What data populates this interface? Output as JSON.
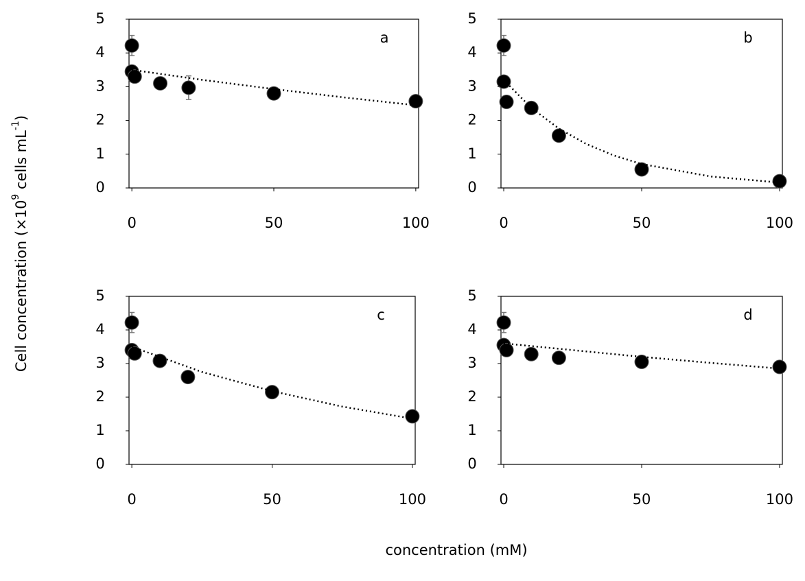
{
  "figure": {
    "x_label": "concentration (mM)",
    "y_label_parts": [
      "Cell concentration (×10",
      "9",
      " cells mL",
      "-1",
      ")"
    ]
  },
  "chart_data": [
    {
      "type": "scatter",
      "label": "a",
      "xlim": [
        -1,
        101
      ],
      "ylim": [
        0,
        5
      ],
      "xticks": [
        0,
        50,
        100
      ],
      "yticks": [
        0,
        1,
        2,
        3,
        4,
        5
      ],
      "series": [
        {
          "color": "#000000",
          "x": [
            0,
            0,
            1,
            10,
            20,
            50,
            100
          ],
          "values": [
            4.22,
            3.45,
            3.3,
            3.1,
            2.97,
            2.8,
            2.57
          ],
          "errors": [
            0.3,
            null,
            null,
            null,
            0.35,
            null,
            null
          ]
        },
        {
          "style": "dotted",
          "color": "#000000",
          "x": [
            0,
            25,
            50,
            75,
            100
          ],
          "values": [
            3.5,
            3.2,
            2.93,
            2.68,
            2.45
          ]
        }
      ]
    },
    {
      "type": "scatter",
      "label": "b",
      "xlim": [
        -1,
        101
      ],
      "ylim": [
        0,
        5
      ],
      "xticks": [
        0,
        50,
        100
      ],
      "yticks": [
        0,
        1,
        2,
        3,
        4,
        5
      ],
      "series": [
        {
          "color": "#000000",
          "x": [
            0,
            0,
            1,
            10,
            20,
            50,
            100
          ],
          "values": [
            4.22,
            3.15,
            2.55,
            2.37,
            1.55,
            0.55,
            0.2
          ],
          "errors": [
            0.3,
            null,
            null,
            null,
            null,
            null,
            null
          ]
        },
        {
          "style": "dotted",
          "color": "#000000",
          "x": [
            0,
            10,
            20,
            30,
            40,
            50,
            75,
            100
          ],
          "values": [
            3.2,
            2.37,
            1.76,
            1.3,
            0.96,
            0.71,
            0.34,
            0.16
          ]
        }
      ]
    },
    {
      "type": "scatter",
      "label": "c",
      "xlim": [
        -1,
        101
      ],
      "ylim": [
        0,
        5
      ],
      "xticks": [
        0,
        50,
        100
      ],
      "yticks": [
        0,
        1,
        2,
        3,
        4,
        5
      ],
      "series": [
        {
          "color": "#000000",
          "x": [
            0,
            0,
            1,
            10,
            20,
            50,
            100
          ],
          "values": [
            4.22,
            3.4,
            3.3,
            3.08,
            2.6,
            2.15,
            1.43
          ],
          "errors": [
            0.3,
            null,
            null,
            null,
            null,
            null,
            null
          ]
        },
        {
          "style": "dotted",
          "color": "#000000",
          "x": [
            0,
            25,
            50,
            75,
            100
          ],
          "values": [
            3.5,
            2.75,
            2.18,
            1.72,
            1.36
          ]
        }
      ]
    },
    {
      "type": "scatter",
      "label": "d",
      "xlim": [
        -1,
        101
      ],
      "ylim": [
        0,
        5
      ],
      "xticks": [
        0,
        50,
        100
      ],
      "yticks": [
        0,
        1,
        2,
        3,
        4,
        5
      ],
      "series": [
        {
          "color": "#000000",
          "x": [
            0,
            0,
            1,
            10,
            20,
            50,
            100
          ],
          "values": [
            4.22,
            3.55,
            3.4,
            3.28,
            3.17,
            3.05,
            2.9
          ],
          "errors": [
            0.3,
            null,
            null,
            null,
            null,
            null,
            null
          ]
        },
        {
          "style": "dotted",
          "color": "#000000",
          "x": [
            0,
            25,
            50,
            75,
            100
          ],
          "values": [
            3.6,
            3.4,
            3.2,
            3.02,
            2.85
          ]
        }
      ]
    }
  ]
}
